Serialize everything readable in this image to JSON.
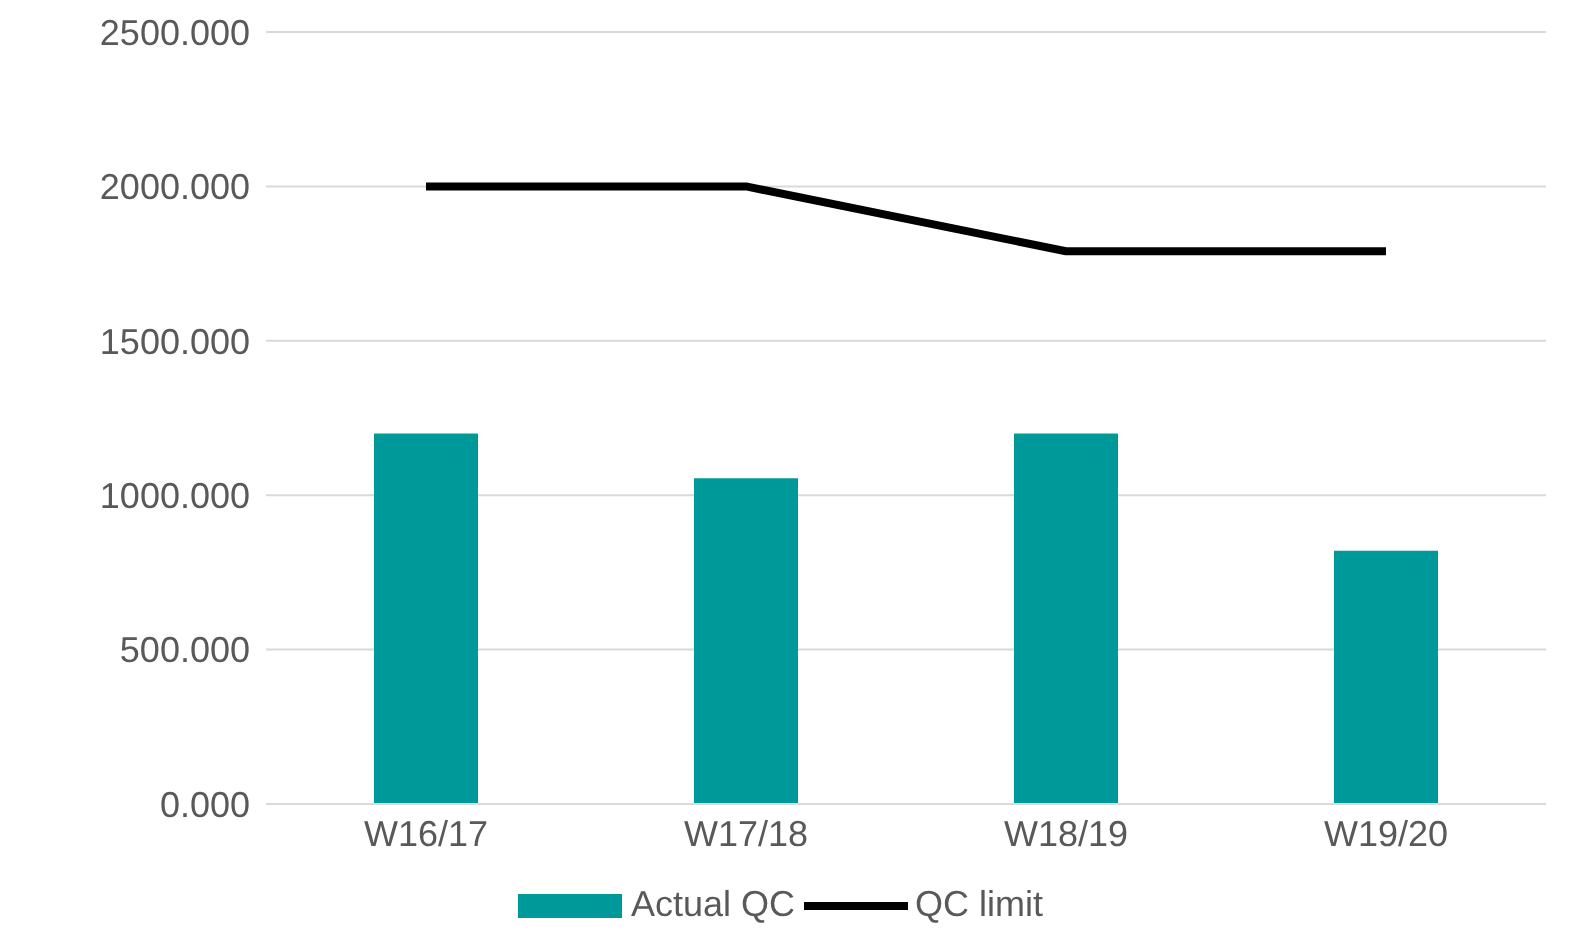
{
  "chart_data": {
    "type": "bar",
    "categories": [
      "W16/17",
      "W17/18",
      "W18/19",
      "W19/20"
    ],
    "series": [
      {
        "name": "Actual QC",
        "color": "#009999",
        "values": [
          1200,
          1055,
          1200,
          820
        ]
      },
      {
        "name": "QC limit",
        "type": "line",
        "color": "#000000",
        "values": [
          2000,
          2000,
          1790,
          1790
        ]
      }
    ],
    "ylim": [
      0,
      2500
    ],
    "yticks": [
      {
        "value": 0,
        "label": "0.000"
      },
      {
        "value": 500,
        "label": "500.000"
      },
      {
        "value": 1000,
        "label": "1000.000"
      },
      {
        "value": 1500,
        "label": "1500.000"
      },
      {
        "value": 2000,
        "label": "2000.000"
      },
      {
        "value": 2500,
        "label": "2500.000"
      }
    ],
    "grid": "y",
    "legend": "bottom",
    "marker": "none"
  }
}
